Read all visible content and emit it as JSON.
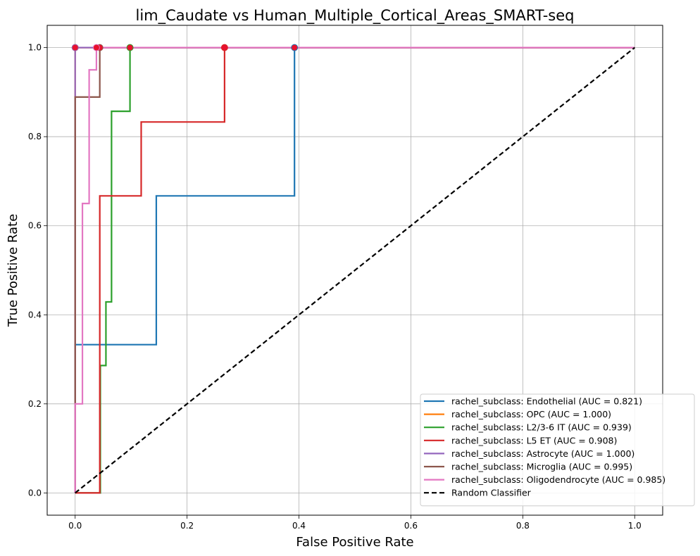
{
  "chart_data": {
    "type": "line",
    "title": "lim_Caudate vs Human_Multiple_Cortical_Areas_SMART-seq",
    "xlabel": "False Positive Rate",
    "ylabel": "True Positive Rate",
    "xlim": [
      -0.05,
      1.05
    ],
    "ylim": [
      -0.05,
      1.05
    ],
    "xticks": [
      "0.0",
      "0.2",
      "0.4",
      "0.6",
      "0.8",
      "1.0"
    ],
    "yticks": [
      "0.0",
      "0.2",
      "0.4",
      "0.6",
      "0.8",
      "1.0"
    ],
    "grid": true,
    "legend_position": "lower-right",
    "series": [
      {
        "name": "rachel_subclass: Endothelial (AUC = 0.821)",
        "color": "#1f77b4",
        "x": [
          0,
          0,
          0.145,
          0.145,
          0.392,
          0.392,
          1
        ],
        "y": [
          0,
          0.333,
          0.333,
          0.667,
          0.667,
          1,
          1
        ],
        "optimal_point": [
          0.392,
          1
        ]
      },
      {
        "name": "rachel_subclass: OPC (AUC = 1.000)",
        "color": "#ff7f0e",
        "x": [
          0,
          0,
          1
        ],
        "y": [
          0,
          1,
          1
        ],
        "optimal_point": [
          0,
          1
        ]
      },
      {
        "name": "rachel_subclass: L2/3-6 IT (AUC = 0.939)",
        "color": "#2ca02c",
        "x": [
          0,
          0.045,
          0.045,
          0.055,
          0.055,
          0.065,
          0.065,
          0.098,
          0.098,
          1
        ],
        "y": [
          0,
          0,
          0.286,
          0.286,
          0.429,
          0.429,
          0.857,
          0.857,
          1,
          1
        ],
        "optimal_point": [
          0.098,
          1
        ]
      },
      {
        "name": "rachel_subclass: L5 ET (AUC = 0.908)",
        "color": "#d62728",
        "x": [
          0,
          0.044,
          0.044,
          0.118,
          0.118,
          0.267,
          0.267,
          1
        ],
        "y": [
          0,
          0,
          0.667,
          0.667,
          0.833,
          0.833,
          1,
          1
        ],
        "optimal_point": [
          0.267,
          1
        ]
      },
      {
        "name": "rachel_subclass: Astrocyte (AUC = 1.000)",
        "color": "#9467bd",
        "x": [
          0,
          0,
          1
        ],
        "y": [
          0,
          1,
          1
        ],
        "optimal_point": [
          0,
          1
        ]
      },
      {
        "name": "rachel_subclass: Microglia (AUC = 0.995)",
        "color": "#8c564b",
        "x": [
          0,
          0,
          0.044,
          0.044,
          1
        ],
        "y": [
          0,
          0.889,
          0.889,
          1,
          1
        ],
        "optimal_point": [
          0.044,
          1
        ]
      },
      {
        "name": "rachel_subclass: Oligodendrocyte (AUC = 0.985)",
        "color": "#e377c2",
        "x": [
          0,
          0,
          0.013,
          0.013,
          0.025,
          0.025,
          0.038,
          0.038,
          1
        ],
        "y": [
          0,
          0.2,
          0.2,
          0.65,
          0.65,
          0.95,
          0.95,
          1,
          1
        ],
        "optimal_point": [
          0.038,
          1
        ]
      }
    ],
    "reference_line": {
      "name": "Random Classifier",
      "color": "#000000",
      "x": [
        0,
        1
      ],
      "y": [
        0,
        1
      ]
    },
    "marker_color": "#e8112d"
  }
}
